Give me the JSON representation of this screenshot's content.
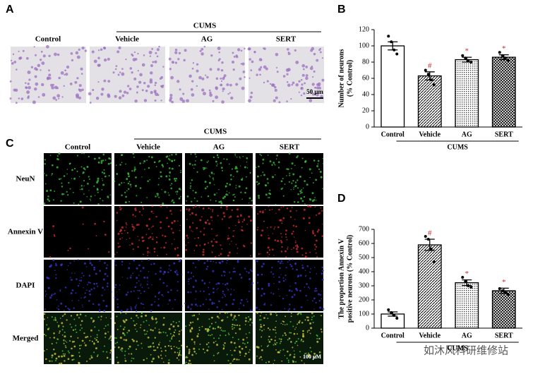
{
  "panels": {
    "A": {
      "label": "A",
      "group": "CUMS",
      "columns": [
        "Control",
        "Vehicle",
        "AG",
        "SERT"
      ],
      "scale": "50 μm"
    },
    "B": {
      "label": "B"
    },
    "C": {
      "label": "C",
      "group": "CUMS",
      "columns": [
        "Control",
        "Vehicle",
        "AG",
        "SERT"
      ],
      "rows": [
        "NeuN",
        "Annexin V",
        "DAPI",
        "Merged"
      ],
      "scale": "100 μM"
    },
    "D": {
      "label": "D"
    }
  },
  "watermark": "如沐风科研维修站",
  "chart_data": [
    {
      "type": "bar",
      "ylabel": [
        "Number of  neurons",
        "(% Control)"
      ],
      "group_label": "CUMS",
      "categories": [
        "Control",
        "Vehicle",
        "AG",
        "SERT"
      ],
      "values": [
        100,
        63,
        83,
        86
      ],
      "errors": [
        5,
        5,
        3,
        3
      ],
      "points": [
        [
          112,
          105,
          95,
          90
        ],
        [
          70,
          65,
          58,
          52
        ],
        [
          88,
          85,
          82,
          80
        ],
        [
          92,
          88,
          85,
          82
        ]
      ],
      "annotations": [
        null,
        "#",
        "*",
        "*"
      ],
      "annotation_color": "#d62728",
      "color": "#000000",
      "patterns": [
        "none",
        "diag",
        "dots",
        "cross"
      ],
      "ylim": [
        0,
        120
      ],
      "yticks": [
        0,
        20,
        40,
        60,
        80,
        100,
        120
      ]
    },
    {
      "type": "bar",
      "ylabel": [
        "The proportion Annexin V",
        "positive neurons (% Control)"
      ],
      "group_label": "CUMS",
      "categories": [
        "Control",
        "Vehicle",
        "AG",
        "SERT"
      ],
      "values": [
        100,
        590,
        322,
        265
      ],
      "errors": [
        15,
        40,
        20,
        18
      ],
      "points": [
        [
          130,
          110,
          90,
          70
        ],
        [
          650,
          630,
          560,
          470
        ],
        [
          360,
          330,
          300,
          290
        ],
        [
          280,
          265,
          250,
          240
        ]
      ],
      "annotations": [
        null,
        "#",
        "*",
        "*"
      ],
      "annotation_color": "#d62728",
      "color": "#000000",
      "patterns": [
        "none",
        "diag",
        "dots",
        "cross"
      ],
      "ylim": [
        0,
        700
      ],
      "yticks": [
        0,
        100,
        200,
        300,
        400,
        500,
        600,
        700
      ]
    }
  ]
}
